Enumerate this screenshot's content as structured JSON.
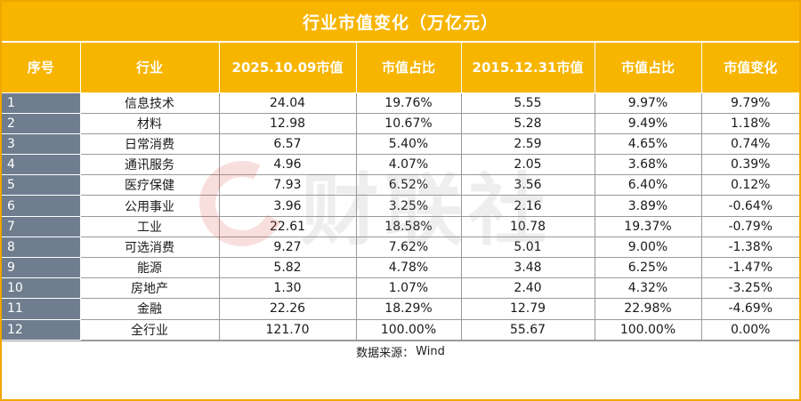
{
  "title": "行业市值变化（万亿元）",
  "columns": [
    "序号",
    "行业",
    "2025.10.09市值",
    "市值占比",
    "2015.12.31市值",
    "市值占比",
    "市值变化"
  ],
  "rows": [
    {
      "idx": "1",
      "industry": "信息技术",
      "mv2025": "24.04",
      "share2025": "19.76%",
      "mv2015": "5.55",
      "share2015": "9.97%",
      "change": "9.79%"
    },
    {
      "idx": "2",
      "industry": "材料",
      "mv2025": "12.98",
      "share2025": "10.67%",
      "mv2015": "5.28",
      "share2015": "9.49%",
      "change": "1.18%"
    },
    {
      "idx": "3",
      "industry": "日常消费",
      "mv2025": "6.57",
      "share2025": "5.40%",
      "mv2015": "2.59",
      "share2015": "4.65%",
      "change": "0.74%"
    },
    {
      "idx": "4",
      "industry": "通讯服务",
      "mv2025": "4.96",
      "share2025": "4.07%",
      "mv2015": "2.05",
      "share2015": "3.68%",
      "change": "0.39%"
    },
    {
      "idx": "5",
      "industry": "医疗保健",
      "mv2025": "7.93",
      "share2025": "6.52%",
      "mv2015": "3.56",
      "share2015": "6.40%",
      "change": "0.12%"
    },
    {
      "idx": "6",
      "industry": "公用事业",
      "mv2025": "3.96",
      "share2025": "3.25%",
      "mv2015": "2.16",
      "share2015": "3.89%",
      "change": "-0.64%"
    },
    {
      "idx": "7",
      "industry": "工业",
      "mv2025": "22.61",
      "share2025": "18.58%",
      "mv2015": "10.78",
      "share2015": "19.37%",
      "change": "-0.79%"
    },
    {
      "idx": "8",
      "industry": "可选消费",
      "mv2025": "9.27",
      "share2025": "7.62%",
      "mv2015": "5.01",
      "share2015": "9.00%",
      "change": "-1.38%"
    },
    {
      "idx": "9",
      "industry": "能源",
      "mv2025": "5.82",
      "share2025": "4.78%",
      "mv2015": "3.48",
      "share2015": "6.25%",
      "change": "-1.47%"
    },
    {
      "idx": "10",
      "industry": "房地产",
      "mv2025": "1.30",
      "share2025": "1.07%",
      "mv2015": "2.40",
      "share2015": "4.32%",
      "change": "-3.25%"
    },
    {
      "idx": "11",
      "industry": "金融",
      "mv2025": "22.26",
      "share2025": "18.29%",
      "mv2015": "12.79",
      "share2015": "22.98%",
      "change": "-4.69%"
    },
    {
      "idx": "12",
      "industry": "全行业",
      "mv2025": "121.70",
      "share2025": "100.00%",
      "mv2015": "55.67",
      "share2015": "100.00%",
      "change": "0.00%"
    }
  ],
  "footer": {
    "label": "数据来源：",
    "source": "Wind"
  },
  "watermark": {
    "text": "财联社"
  }
}
